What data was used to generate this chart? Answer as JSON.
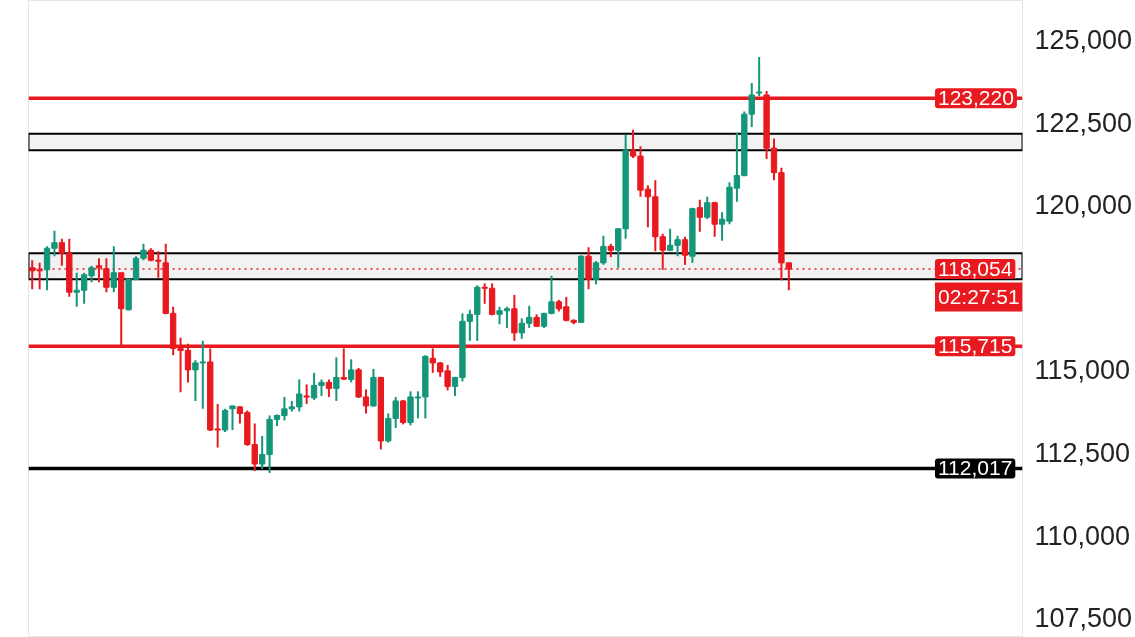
{
  "chart_data": {
    "type": "candlestick",
    "categories": [
      null,
      null,
      null,
      null,
      null,
      null,
      null,
      null,
      null,
      null,
      null,
      null,
      null,
      null,
      null,
      null,
      null,
      null,
      null,
      null,
      null,
      null,
      null,
      null,
      null,
      null,
      null,
      null,
      null,
      null,
      null,
      null,
      null,
      null,
      null,
      null,
      null,
      null,
      null,
      null,
      null,
      null,
      null,
      null,
      null,
      null,
      null,
      null,
      null,
      null,
      null,
      null,
      null,
      null,
      null,
      null,
      null,
      null,
      null,
      null,
      null,
      null,
      null,
      null,
      null,
      null,
      null,
      null,
      null,
      null,
      null,
      null,
      null,
      null,
      null,
      null,
      null,
      null,
      null,
      null,
      null,
      null,
      null,
      null,
      null,
      null,
      null,
      null,
      null,
      null,
      null,
      null,
      null,
      null,
      null,
      null,
      null,
      null,
      null,
      null,
      null,
      null,
      null,
      null,
      null,
      null,
      null,
      null,
      null,
      null,
      null,
      null,
      null,
      null,
      null,
      null,
      null,
      null,
      null,
      null,
      null,
      null,
      null,
      null,
      null,
      null,
      null,
      null,
      null,
      null,
      null,
      null,
      null,
      null
    ],
    "ohlc": [
      [
        118090,
        118320,
        117440,
        118000
      ],
      [
        118030,
        118240,
        117440,
        118000
      ],
      [
        118030,
        118740,
        117410,
        118680
      ],
      [
        118680,
        119210,
        118440,
        118850
      ],
      [
        118850,
        118970,
        118150,
        118530
      ],
      [
        118530,
        118970,
        117210,
        117350
      ],
      [
        117350,
        117940,
        116910,
        117410
      ],
      [
        117410,
        117940,
        117000,
        117880
      ],
      [
        117850,
        118150,
        117650,
        118090
      ],
      [
        118150,
        118380,
        117650,
        118090
      ],
      [
        118060,
        118380,
        117350,
        117500
      ],
      [
        117500,
        118740,
        117350,
        117940
      ],
      [
        117940,
        117940,
        115740,
        116850
      ],
      [
        116820,
        117760,
        116800,
        117740
      ],
      [
        117740,
        118440,
        117710,
        118380
      ],
      [
        118380,
        118820,
        118320,
        118620
      ],
      [
        118620,
        118680,
        118290,
        118320
      ],
      [
        118320,
        118590,
        117790,
        118290
      ],
      [
        118240,
        118820,
        116680,
        116710
      ],
      [
        116710,
        116910,
        115440,
        115650
      ],
      [
        115650,
        115970,
        114320,
        115590
      ],
      [
        115590,
        115790,
        114620,
        115000
      ],
      [
        115000,
        115290,
        114060,
        115210
      ],
      [
        115210,
        115880,
        113820,
        115240
      ],
      [
        115240,
        115650,
        113150,
        113180
      ],
      [
        113210,
        113970,
        112650,
        113180
      ],
      [
        113180,
        113820,
        113120,
        113770
      ],
      [
        113820,
        113910,
        113180,
        113910
      ],
      [
        113880,
        113910,
        113380,
        113680
      ],
      [
        113710,
        113770,
        112700,
        112740
      ],
      [
        112740,
        113380,
        111940,
        112150
      ],
      [
        112150,
        113000,
        112000,
        112440
      ],
      [
        112440,
        113620,
        111880,
        113500
      ],
      [
        113500,
        113650,
        113300,
        113620
      ],
      [
        113620,
        114180,
        113470,
        113820
      ],
      [
        113820,
        114060,
        113740,
        113880
      ],
      [
        113880,
        114710,
        113740,
        114270
      ],
      [
        114210,
        114560,
        113970,
        114180
      ],
      [
        114150,
        114910,
        114090,
        114530
      ],
      [
        114530,
        114710,
        114210,
        114620
      ],
      [
        114620,
        114710,
        114180,
        114440
      ],
      [
        114440,
        115380,
        114060,
        114770
      ],
      [
        114770,
        115650,
        114700,
        114720
      ],
      [
        114710,
        115320,
        114620,
        115000
      ],
      [
        115000,
        115060,
        114150,
        114180
      ],
      [
        114180,
        114410,
        113680,
        113910
      ],
      [
        113910,
        115030,
        113880,
        114770
      ],
      [
        114770,
        114790,
        112590,
        112850
      ],
      [
        112850,
        113680,
        112800,
        113530
      ],
      [
        113530,
        114180,
        113240,
        114060
      ],
      [
        114060,
        114090,
        113350,
        113410
      ],
      [
        113410,
        114350,
        113320,
        114180
      ],
      [
        114150,
        114350,
        113530,
        114180
      ],
      [
        114180,
        115440,
        113530,
        115410
      ],
      [
        115350,
        115650,
        114910,
        115210
      ],
      [
        115210,
        115240,
        114790,
        114940
      ],
      [
        114970,
        115150,
        114380,
        114500
      ],
      [
        114500,
        114790,
        114210,
        114770
      ],
      [
        114770,
        116710,
        114650,
        116470
      ],
      [
        116470,
        116820,
        115880,
        116680
      ],
      [
        116680,
        117560,
        115880,
        117500
      ],
      [
        117500,
        117620,
        117000,
        117470
      ],
      [
        117470,
        117620,
        116650,
        116680
      ],
      [
        116680,
        116910,
        116380,
        116790
      ],
      [
        116790,
        116910,
        116270,
        116850
      ],
      [
        116850,
        117270,
        115880,
        116120
      ],
      [
        116120,
        116560,
        115940,
        116410
      ],
      [
        116410,
        116940,
        116270,
        116590
      ],
      [
        116590,
        116680,
        116300,
        116320
      ],
      [
        116320,
        116730,
        116270,
        116710
      ],
      [
        116710,
        117850,
        116680,
        117060
      ],
      [
        117060,
        117120,
        116770,
        116850
      ],
      [
        116910,
        117210,
        116470,
        116500
      ],
      [
        116500,
        116530,
        116380,
        116440
      ],
      [
        116440,
        118470,
        116420,
        118440
      ],
      [
        118440,
        118710,
        117440,
        117740
      ],
      [
        117740,
        118290,
        117590,
        118240
      ],
      [
        118240,
        119060,
        118180,
        118740
      ],
      [
        118740,
        118820,
        118410,
        118620
      ],
      [
        118620,
        119290,
        118090,
        119270
      ],
      [
        119270,
        122120,
        118970,
        121650
      ],
      [
        121650,
        122270,
        121410,
        121470
      ],
      [
        121470,
        121770,
        120240,
        120440
      ],
      [
        120470,
        120590,
        119320,
        120240
      ],
      [
        120240,
        120740,
        118590,
        119030
      ],
      [
        119030,
        119120,
        118030,
        118620
      ],
      [
        118620,
        119270,
        118590,
        118770
      ],
      [
        118770,
        119060,
        118440,
        118940
      ],
      [
        118940,
        119030,
        118180,
        118470
      ],
      [
        118440,
        119910,
        118240,
        119880
      ],
      [
        119910,
        120150,
        119180,
        119620
      ],
      [
        119620,
        120240,
        119560,
        120060
      ],
      [
        120060,
        120090,
        119030,
        119410
      ],
      [
        119410,
        119770,
        118910,
        119560
      ],
      [
        119500,
        120680,
        119410,
        120530
      ],
      [
        120500,
        122180,
        120090,
        120880
      ],
      [
        120880,
        122820,
        120860,
        122740
      ],
      [
        122740,
        123680,
        122350,
        123320
      ],
      [
        123380,
        124470,
        123290,
        123410
      ],
      [
        123320,
        123440,
        121380,
        121710
      ],
      [
        121710,
        122000,
        120740,
        120970
      ],
      [
        120970,
        121120,
        117710,
        118240
      ],
      [
        118240,
        118250,
        117410,
        118054
      ],
      null,
      null,
      null,
      null,
      null,
      null,
      null,
      null,
      null,
      null,
      null,
      null,
      null,
      null,
      null,
      null,
      null,
      null,
      null,
      null,
      null,
      null,
      null,
      null,
      null,
      null,
      null,
      null,
      null,
      null,
      null
    ],
    "colors": [
      "#e8191f",
      "#e8191f",
      "#14967a",
      "#14967a",
      "#e8191f",
      "#e8191f",
      "#14967a",
      "#14967a",
      "#14967a",
      "#e8191f",
      "#e8191f",
      "#14967a",
      "#e8191f",
      "#14967a",
      "#14967a",
      "#14967a",
      "#e8191f",
      "#e8191f",
      "#e8191f",
      "#e8191f",
      "#e8191f",
      "#e8191f",
      "#14967a",
      "#14967a",
      "#e8191f",
      "#e8191f",
      "#14967a",
      "#14967a",
      "#e8191f",
      "#e8191f",
      "#e8191f",
      "#14967a",
      "#14967a",
      "#14967a",
      "#14967a",
      "#14967a",
      "#14967a",
      "#e8191f",
      "#14967a",
      "#14967a",
      "#e8191f",
      "#14967a",
      "#e8191f",
      "#14967a",
      "#e8191f",
      "#e8191f",
      "#14967a",
      "#e8191f",
      "#14967a",
      "#14967a",
      "#e8191f",
      "#14967a",
      "#14967a",
      "#14967a",
      "#e8191f",
      "#e8191f",
      "#e8191f",
      "#14967a",
      "#14967a",
      "#14967a",
      "#14967a",
      "#e8191f",
      "#e8191f",
      "#14967a",
      "#14967a",
      "#e8191f",
      "#14967a",
      "#14967a",
      "#e8191f",
      "#14967a",
      "#14967a",
      "#e8191f",
      "#e8191f",
      "#e8191f",
      "#14967a",
      "#e8191f",
      "#14967a",
      "#14967a",
      "#e8191f",
      "#14967a",
      "#14967a",
      "#e8191f",
      "#e8191f",
      "#e8191f",
      "#e8191f",
      "#e8191f",
      "#14967a",
      "#14967a",
      "#e8191f",
      "#14967a",
      "#e8191f",
      "#14967a",
      "#e8191f",
      "#14967a",
      "#14967a",
      "#14967a",
      "#14967a",
      "#14967a",
      "#14967a",
      "#e8191f",
      "#e8191f",
      "#e8191f",
      "#e8191f",
      null,
      null,
      null,
      null,
      null,
      null,
      null,
      null,
      null,
      null,
      null,
      null,
      null,
      null,
      null,
      null,
      null,
      null,
      null,
      null,
      null,
      null,
      null,
      null,
      null,
      null,
      null,
      null,
      null,
      null,
      null
    ],
    "ylim": [
      106900,
      126180
    ],
    "yticks": [
      {
        "value": 107500,
        "label": "107,500"
      },
      {
        "value": 110000,
        "label": "110,000"
      },
      {
        "value": 112500,
        "label": "112,500"
      },
      {
        "value": 115000,
        "label": "115,000"
      },
      {
        "value": 120000,
        "label": "120,000"
      },
      {
        "value": 122500,
        "label": "122,500"
      },
      {
        "value": 125000,
        "label": "125,000"
      }
    ],
    "tick_labels": "y",
    "ref_lines": [
      {
        "axis": "y",
        "value": 123220,
        "label": "123,220",
        "color": "#e8191f"
      },
      {
        "axis": "y",
        "value": 118054,
        "label": "118,054",
        "color": "#e8191f",
        "line_style": "dotted"
      },
      {
        "axis": "y",
        "value": 115715,
        "label": "115,715",
        "color": "#e8191f"
      },
      {
        "axis": "y",
        "value": 112017,
        "label": "112,017",
        "color": "#000000"
      }
    ],
    "bands": [
      {
        "axis": "y",
        "from": 117740,
        "to": 118530,
        "color": "#000000"
      },
      {
        "axis": "y",
        "from": 121650,
        "to": 122150,
        "color": "#000000"
      }
    ],
    "annotations": [
      "02:27:51"
    ]
  }
}
